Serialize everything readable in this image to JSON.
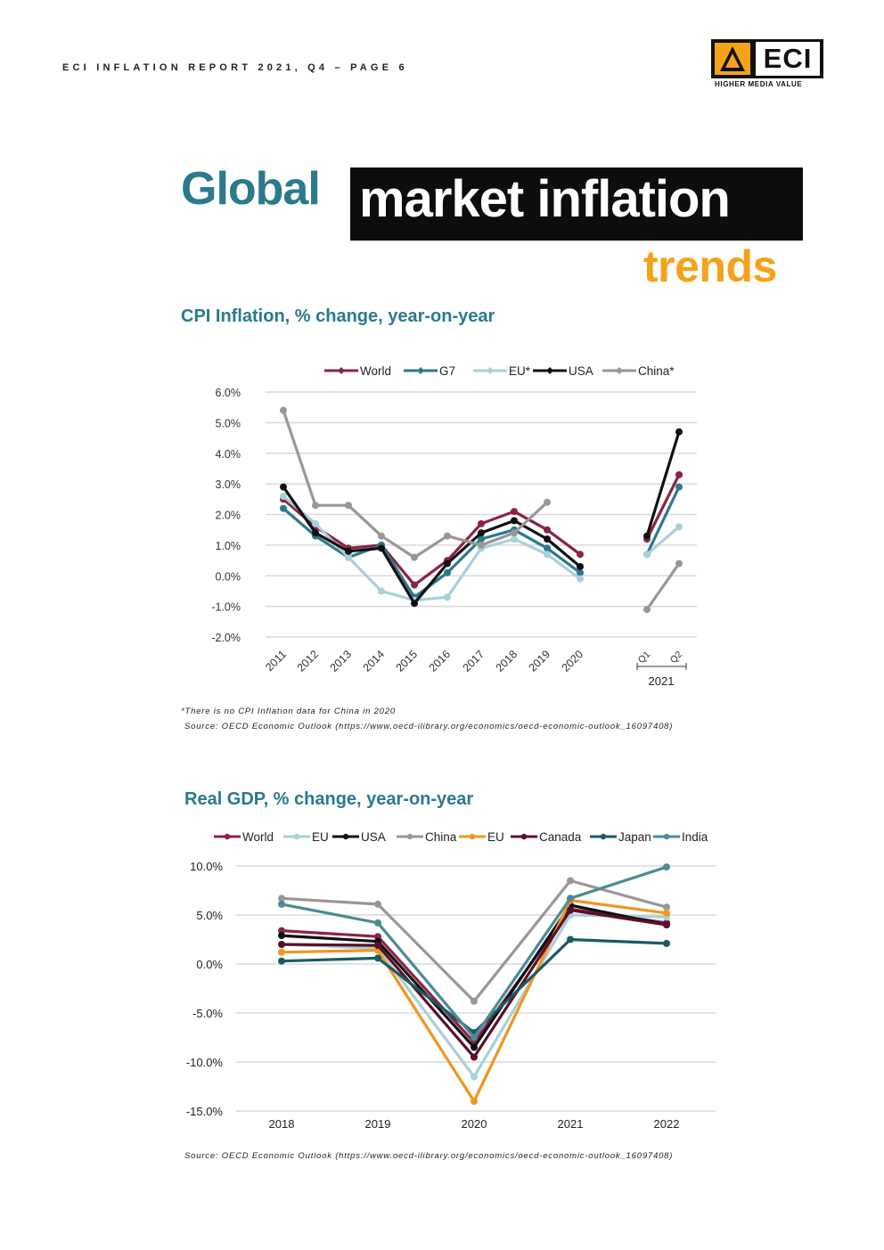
{
  "header": {
    "text": "ECI INFLATION REPORT 2021, Q4  – PAGE 6"
  },
  "logo": {
    "text": "ECI",
    "tagline": "HIGHER MEDIA VALUE"
  },
  "title": {
    "part1": "Global",
    "part2": "market inflation",
    "part3": "trends"
  },
  "colors": {
    "teal": "#2a7a8c",
    "orange": "#f5a21b",
    "black": "#0d0d0d"
  },
  "cpi": {
    "title": "CPI Inflation, % change, year-on-year",
    "footnote": "*There is no CPI Inflation data for China in 2020",
    "source": "Source: OECD Economic Outlook (https://www.oecd-ilibrary.org/economics/oecd-economic-outlook_16097408)"
  },
  "gdp": {
    "title": "Real GDP, % change, year-on-year",
    "source": "Source: OECD Economic Outlook (https://www.oecd-ilibrary.org/economics/oecd-economic-outlook_16097408)"
  },
  "chart_data": [
    {
      "type": "line",
      "title": "CPI Inflation, % change, year-on-year",
      "categories": [
        "2011",
        "2012",
        "2013",
        "2014",
        "2015",
        "2016",
        "2017",
        "2018",
        "2019",
        "2020",
        "Q1",
        "Q2"
      ],
      "group_label": "2021",
      "y_ticks": [
        "6.0%",
        "5.0%",
        "4.0%",
        "3.0%",
        "2.0%",
        "1.0%",
        "0.0%",
        "-1.0%",
        "-2.0%"
      ],
      "ylim": [
        -2,
        6
      ],
      "grid": true,
      "legend": "top",
      "series": [
        {
          "name": "World",
          "color": "#8b2346",
          "values": [
            2.5,
            1.6,
            0.9,
            1.0,
            -0.3,
            0.5,
            1.7,
            2.1,
            1.5,
            0.7,
            1.2,
            3.3
          ]
        },
        {
          "name": "G7",
          "color": "#2a7a8c",
          "values": [
            2.2,
            1.3,
            0.6,
            1.0,
            -0.7,
            0.1,
            1.2,
            1.5,
            0.9,
            0.1,
            0.7,
            2.9
          ]
        },
        {
          "name": "EU*",
          "color": "#a9d0da",
          "values": [
            2.6,
            1.7,
            0.6,
            -0.5,
            -0.8,
            -0.7,
            0.9,
            1.2,
            0.7,
            -0.1,
            0.7,
            1.6
          ]
        },
        {
          "name": "USA",
          "color": "#111111",
          "values": [
            2.9,
            1.4,
            0.8,
            0.9,
            -0.9,
            0.4,
            1.4,
            1.8,
            1.2,
            0.3,
            1.3,
            4.7
          ]
        },
        {
          "name": "China*",
          "color": "#9a9696",
          "values": [
            5.4,
            2.3,
            2.3,
            1.3,
            0.6,
            1.3,
            1.0,
            1.4,
            2.4,
            null,
            -1.1,
            0.4
          ]
        }
      ]
    },
    {
      "type": "line",
      "title": "Real GDP, % change, year-on-year",
      "categories": [
        "2018",
        "2019",
        "2020",
        "2021",
        "2022"
      ],
      "y_ticks": [
        "10.0%",
        "5.0%",
        "0.0%",
        "-5.0%",
        "-10.0%",
        "-15.0%"
      ],
      "ylim": [
        -15,
        10
      ],
      "grid": true,
      "legend": "top",
      "series": [
        {
          "name": "World",
          "color": "#8b2346",
          "values": [
            3.4,
            2.8,
            -8.0,
            5.6,
            4.2
          ]
        },
        {
          "name": "EU",
          "color": "#a9d0da",
          "values": [
            2.0,
            1.6,
            -11.5,
            5.0,
            4.8
          ]
        },
        {
          "name": "USA",
          "color": "#111111",
          "values": [
            2.9,
            2.3,
            -8.5,
            6.0,
            4.0
          ]
        },
        {
          "name": "China",
          "color": "#9a9696",
          "values": [
            6.7,
            6.1,
            -3.8,
            8.5,
            5.8
          ]
        },
        {
          "name": "EU",
          "color": "#f0961e",
          "values": [
            1.2,
            1.4,
            -14.0,
            6.5,
            5.2
          ]
        },
        {
          "name": "Canada",
          "color": "#5a1028",
          "values": [
            2.0,
            1.9,
            -9.5,
            5.5,
            4.0
          ]
        },
        {
          "name": "Japan",
          "color": "#1a5a66",
          "values": [
            0.3,
            0.6,
            -7.0,
            2.5,
            2.1
          ]
        },
        {
          "name": "India",
          "color": "#4a8b96",
          "values": [
            6.1,
            4.2,
            -7.5,
            6.7,
            9.9
          ]
        }
      ]
    }
  ]
}
